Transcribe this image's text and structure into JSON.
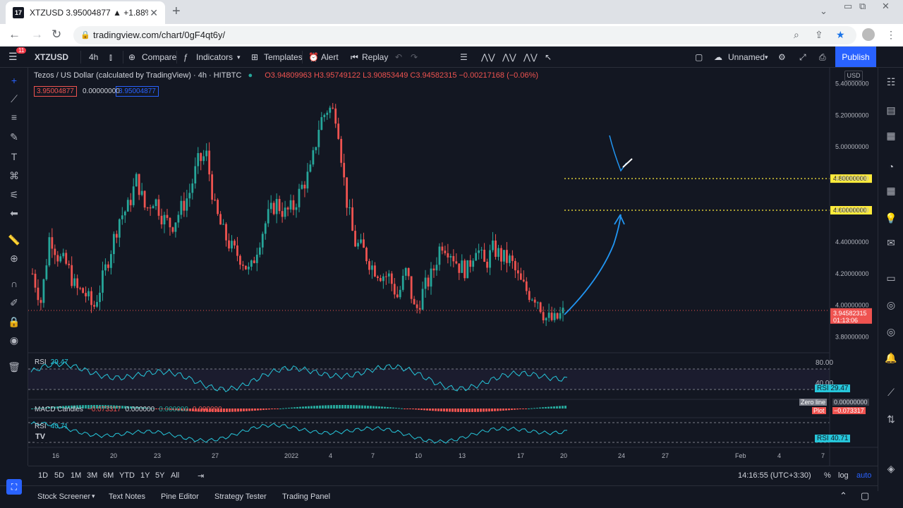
{
  "browser": {
    "tab_title": "XTZUSD 3.95004877 ▲ +1.88% U",
    "favicon": "17",
    "url": "tradingview.com/chart/0gF4qt6y/"
  },
  "toolbar": {
    "symbol": "XTZUSD",
    "interval": "4h",
    "compare": "Compare",
    "indicators": "Indicators",
    "templates": "Templates",
    "alert": "Alert",
    "replay": "Replay",
    "layout_name": "Unnamed",
    "publish": "Publish",
    "notif_badge": "11"
  },
  "legend": {
    "name": "Tezos / US Dollar (calculated by TradingView) · 4h · HITBTC",
    "ohlc": "O3.94809963 H3.95749122 L3.90853449 C3.94582315 −0.00217168 (−0.06%)",
    "bid": "3.95004877",
    "spread": "0.00000000",
    "ask": "3.95004877"
  },
  "price_axis": {
    "currency": "USD",
    "ticks": [
      "5.40000000",
      "5.20000000",
      "5.00000000",
      "4.80000000",
      "4.60000000",
      "4.40000000",
      "4.20000000",
      "4.00000000",
      "3.80000000"
    ],
    "hline_labels": [
      "4.80000000",
      "4.60000000"
    ],
    "last_price": "3.94582315",
    "countdown": "01:13:06"
  },
  "time_axis": {
    "labels": [
      "16",
      "20",
      "23",
      "27",
      "2022",
      "4",
      "7",
      "10",
      "13",
      "17",
      "20",
      "24",
      "27",
      "Feb",
      "4",
      "7"
    ]
  },
  "indicators": {
    "rsi1": {
      "name": "RSI",
      "value": "29.47",
      "upper": "80.00",
      "lower": "40.00"
    },
    "macd": {
      "name": "MACD Candles",
      "v1": "−0.073317",
      "v2": "0.000000",
      "v3": "0.000000",
      "v4": "0.000000",
      "zero_label": "Zero line",
      "zero_val": "0.00000000",
      "plot_label": "Plot",
      "plot_val": "−0.073317"
    },
    "rsi2": {
      "name": "RSI",
      "value": "40.71"
    }
  },
  "range_bar": {
    "ranges": [
      "1D",
      "5D",
      "1M",
      "3M",
      "6M",
      "YTD",
      "1Y",
      "5Y",
      "All"
    ],
    "clock": "14:16:55 (UTC+3:30)",
    "pct": "%",
    "log": "log",
    "auto": "auto"
  },
  "bottom_tabs": [
    "Stock Screener",
    "Text Notes",
    "Pine Editor",
    "Strategy Tester",
    "Trading Panel"
  ],
  "colors": {
    "up": "#26a69a",
    "down": "#ef5350",
    "hline": "#ffeb3b",
    "accent": "#2962ff",
    "rsi_line": "#26c6da",
    "drawing": "#2196f3"
  },
  "chart_data": {
    "type": "candlestick",
    "ylim": [
      3.7,
      5.5
    ],
    "closes": [
      4.2,
      4.02,
      4.45,
      4.3,
      4.25,
      4.1,
      4.08,
      3.98,
      4.15,
      4.35,
      4.55,
      4.62,
      4.8,
      4.6,
      4.68,
      4.55,
      4.5,
      4.6,
      4.7,
      4.9,
      4.95,
      4.6,
      4.45,
      4.35,
      4.3,
      4.2,
      4.4,
      4.55,
      4.65,
      4.58,
      4.62,
      4.75,
      4.85,
      5.15,
      5.25,
      5.2,
      4.7,
      4.4,
      4.35,
      4.25,
      4.2,
      4.18,
      4.05,
      4.22,
      3.95,
      4.1,
      4.2,
      4.4,
      4.35,
      4.25,
      4.22,
      4.38,
      4.25,
      4.36,
      4.3,
      4.28,
      4.15,
      4.08,
      4.05,
      3.92,
      3.9,
      3.95
    ],
    "hlines": [
      4.8,
      4.6
    ]
  }
}
